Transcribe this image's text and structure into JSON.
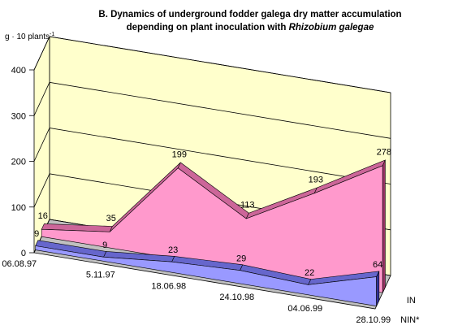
{
  "chart_data": {
    "type": "area",
    "title": "B. Dynamics of underground fodder galega dry matter accumulation",
    "subtitle_prefix": "depending on plant inoculation with ",
    "subtitle_italic": "Rhizobium galegae",
    "ylabel_main": "g · 10 plants",
    "ylabel_sup": "-1",
    "ylim": [
      0,
      400
    ],
    "yticks": [
      "0",
      "100",
      "200",
      "300",
      "400"
    ],
    "categories": [
      "06.08.97",
      "5.11.97",
      "18.06.98",
      "24.10.98",
      "04.06.99",
      "28.10.99"
    ],
    "series": [
      {
        "name": "IN",
        "values": [
          16,
          35,
          199,
          113,
          193,
          278
        ]
      },
      {
        "name": "NIN*",
        "values": [
          9,
          9,
          23,
          29,
          22,
          64
        ]
      }
    ],
    "data_labels": {
      "IN": [
        "16",
        "35",
        "199",
        "113",
        "193",
        "278"
      ],
      "NIN*": [
        "9",
        "9",
        "23",
        "29",
        "22",
        "64"
      ]
    },
    "grid": true,
    "colors": {
      "wall": "#ffffcc",
      "IN_front": "#ff99cc",
      "IN_top": "#cc6699",
      "IN_side": "#993366",
      "NIN_front": "#9999ff",
      "NIN_top": "#6666cc",
      "NIN_side": "#333399",
      "grid": "#000000"
    }
  }
}
